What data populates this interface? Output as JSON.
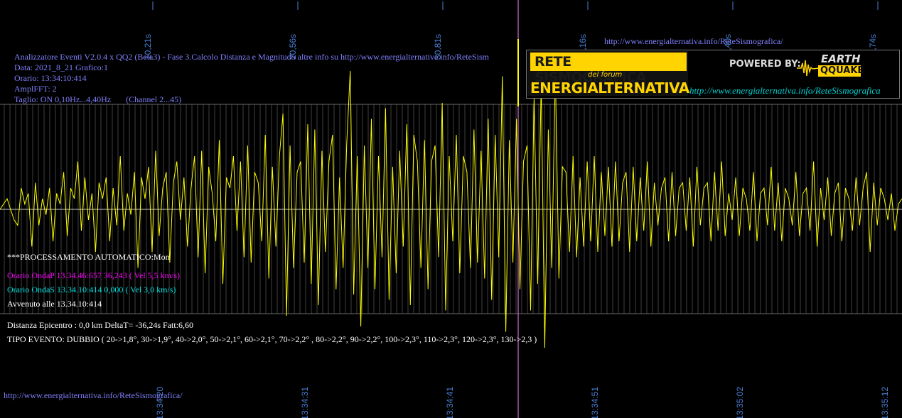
{
  "header": {
    "title": "Analizzatore Eventi V2.0.4 x QQ2 (Beta3) - Fase 3.Calcolo Distanza e Magnitudo altre info su http://www.energialternativa.info/ReteSism",
    "data": "Data: 2021_8_21 Grafico:1",
    "orario": "Orario: 13:34:10:414",
    "amplfft": "AmplFFT: 2",
    "taglio": "Taglio: ON 0,10Hz...4,40Hz       (Channel 2...45)"
  },
  "top_url": "http://www.energialternativa.info/ReteSismografica/",
  "bottom_url": "http://www.energialternativa.info/ReteSismografica/",
  "logo": {
    "line1": "RETE SISMOGRAFICA",
    "line2": "del forum",
    "line3": "ENERGIALTERNATIVA",
    "powered": "POWERED BY:",
    "brand_top": "EARTH",
    "brand_bottom": "QQUAKE",
    "url": "http://www.energialternativa.info/ReteSismografica"
  },
  "info": {
    "processing": "***PROCESSAMENTO AUTOMATICO:Mon",
    "onda_p": "Orario OndaP 13.34.46:657  36,243 ( Vel 5,5 km/s)",
    "onda_s": "Orario OndaS 13.34.10:414  0,000 ( Vel 3,0 km/s)",
    "avvenuto": "Avvenuto alle 13.34.10:414",
    "distanza": "Distanza Epicentro : 0,0 km DeltaT= -36,24s  Fatt:6,60",
    "tipo": "TIPO EVENTO: DUBBIO ( 20->1,8°, 30->1,9°, 40->2,0°, 50->2,1°, 60->2,1°, 70->2,2° , 80->2,2°, 90->2,2°, 100->2,3°, 110->2,3°, 120->2,3°, 130->2,3 )"
  },
  "colors": {
    "trace": "#ffff00",
    "background": "#000000",
    "axis_text": "#4a7fd4",
    "marker": "#ff80ff",
    "grid": "#6a6a6a"
  },
  "chart_data": {
    "type": "line",
    "title": "",
    "xlabel": "",
    "ylabel": "",
    "top_ticks": [
      "10,21s",
      "20,56s",
      "30,81s",
      "41,16s",
      "51,40s",
      "61,74s"
    ],
    "bottom_ticks": [
      "13:34:20",
      "13:34:31",
      "13:34:41",
      "13:34:51",
      "13:35:02",
      "13:35:12"
    ],
    "marker_time": "13:34:46",
    "grid": true,
    "series": [
      {
        "values": [
          0.0,
          0.05,
          0.1,
          0.0,
          -0.1,
          -0.15,
          0.2,
          0.05,
          0.15,
          -0.35,
          0.25,
          -0.15,
          0.1,
          -0.05,
          0.2,
          -0.3,
          0.15,
          0.05,
          0.35,
          -0.25,
          0.2,
          0.1,
          0.45,
          -0.2,
          0.3,
          -0.1,
          0.15,
          -0.4,
          0.25,
          0.1,
          0.3,
          -0.3,
          0.2,
          -0.15,
          0.5,
          -0.2,
          0.15,
          -0.05,
          0.35,
          -0.55,
          0.3,
          0.1,
          0.4,
          -0.4,
          0.55,
          -0.25,
          0.2,
          0.35,
          -0.5,
          0.25,
          0.45,
          -0.1,
          0.3,
          -0.35,
          0.2,
          0.5,
          -0.45,
          0.55,
          -0.6,
          0.4,
          0.15,
          -0.3,
          0.65,
          -0.7,
          0.3,
          0.2,
          0.5,
          -0.2,
          0.45,
          -0.45,
          0.6,
          -0.5,
          0.35,
          0.25,
          -0.3,
          0.7,
          -0.65,
          0.4,
          -0.35,
          0.5,
          0.9,
          -1.0,
          0.6,
          -0.55,
          0.35,
          0.45,
          -0.5,
          0.8,
          -0.7,
          0.75,
          -0.9,
          0.55,
          -0.4,
          0.45,
          0.7,
          -0.75,
          0.3,
          -0.55,
          0.6,
          1.3,
          -0.8,
          0.5,
          -1.1,
          0.6,
          -0.55,
          0.85,
          -0.75,
          0.5,
          -0.45,
          0.95,
          -0.85,
          0.4,
          -0.6,
          0.55,
          -0.35,
          0.8,
          -0.9,
          0.7,
          0.45,
          -0.55,
          0.65,
          -0.75,
          0.45,
          0.6,
          -0.45,
          1.0,
          -0.95,
          0.5,
          -0.3,
          0.7,
          -0.6,
          0.5,
          0.35,
          -0.55,
          0.75,
          -0.5,
          0.55,
          -0.65,
          0.85,
          -0.85,
          0.7,
          -0.45,
          1.25,
          -1.15,
          0.65,
          -0.5,
          0.85,
          -0.75,
          0.45,
          0.6,
          -0.95,
          1.05,
          -0.7,
          1.2,
          -1.3,
          0.75,
          -0.55,
          1.3,
          -0.65,
          0.4,
          0.35,
          -0.4,
          0.5,
          -0.45,
          0.3,
          -0.35,
          0.45,
          -0.3,
          0.5,
          -0.4,
          0.35,
          -0.25,
          0.4,
          -0.35,
          0.45,
          -0.3,
          0.25,
          0.35,
          -0.4,
          0.4,
          -0.3,
          0.3,
          -0.2,
          0.45,
          -0.35,
          0.25,
          -0.15,
          0.2,
          0.3,
          -0.3,
          0.35,
          -0.25,
          0.2,
          0.25,
          -0.2,
          0.3,
          -0.35,
          0.4,
          -0.15,
          0.2,
          0.25,
          -0.3,
          0.35,
          -0.2,
          0.45,
          -0.25,
          0.15,
          -0.1,
          0.3,
          -0.25,
          0.2,
          0.1,
          -0.2,
          0.35,
          -0.3,
          0.15,
          0.2,
          -0.15,
          0.4,
          -0.2,
          0.25,
          -0.3,
          0.2,
          0.1,
          -0.15,
          0.35,
          -0.25,
          0.15,
          0.2,
          -0.2,
          0.45,
          -0.35,
          0.2,
          -0.1,
          0.3,
          -0.25,
          0.15,
          0.25,
          -0.3,
          0.2,
          0.1,
          -0.2,
          0.3,
          -0.15,
          0.2,
          0.35,
          -0.4,
          0.25,
          -0.15,
          0.2,
          0.1,
          -0.1,
          0.15,
          -0.2,
          0.05,
          0.1
        ]
      }
    ]
  }
}
